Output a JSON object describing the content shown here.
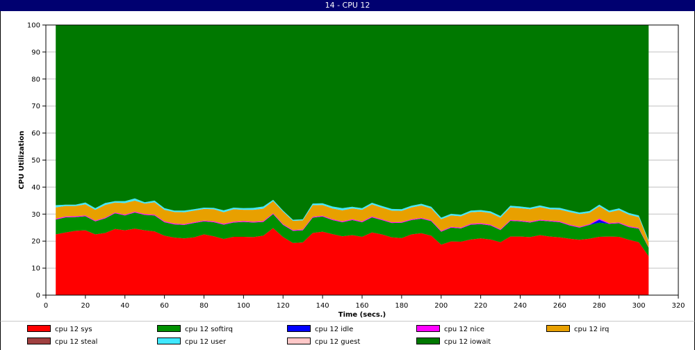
{
  "window": {
    "title": "14 - CPU 12"
  },
  "chart_data": {
    "type": "area",
    "stacked": true,
    "xlabel": "Time (secs.)",
    "ylabel": "CPU Utilization",
    "xlim": [
      0,
      320
    ],
    "ylim": [
      0,
      100
    ],
    "xticks": [
      0,
      20,
      40,
      60,
      80,
      100,
      120,
      140,
      160,
      180,
      200,
      220,
      240,
      260,
      280,
      300,
      320
    ],
    "yticks": [
      0,
      10,
      20,
      30,
      40,
      50,
      60,
      70,
      80,
      90,
      100
    ],
    "grid": true,
    "legend_position": "bottom",
    "x": [
      5,
      10,
      15,
      20,
      25,
      30,
      35,
      40,
      45,
      50,
      55,
      60,
      65,
      70,
      75,
      80,
      85,
      90,
      95,
      100,
      105,
      110,
      115,
      120,
      125,
      130,
      135,
      140,
      145,
      150,
      155,
      160,
      165,
      170,
      175,
      180,
      185,
      190,
      195,
      200,
      205,
      210,
      215,
      220,
      225,
      230,
      235,
      240,
      245,
      250,
      255,
      260,
      265,
      270,
      275,
      280,
      285,
      290,
      295,
      300,
      305
    ],
    "series": [
      {
        "name": "cpu 12 sys",
        "color": "#ff0000",
        "values": [
          22.5,
          23.2,
          23.8,
          24.0,
          22.5,
          23.0,
          24.5,
          24.0,
          24.6,
          24.0,
          23.6,
          22.0,
          21.3,
          21.0,
          21.4,
          22.5,
          21.8,
          20.8,
          21.6,
          21.6,
          21.5,
          22.0,
          24.8,
          21.5,
          19.3,
          19.5,
          23.0,
          23.5,
          22.6,
          21.8,
          22.2,
          21.6,
          23.2,
          22.5,
          21.4,
          21.1,
          22.5,
          22.9,
          22.0,
          18.7,
          19.9,
          19.8,
          20.6,
          21.0,
          20.6,
          19.6,
          21.7,
          21.7,
          21.5,
          22.2,
          21.7,
          21.4,
          20.9,
          20.5,
          20.9,
          21.6,
          21.7,
          21.6,
          20.5,
          19.6,
          14.4
        ]
      },
      {
        "name": "cpu 12 softirq",
        "color": "#009000",
        "values": [
          5.5,
          5.6,
          5.1,
          5.2,
          4.8,
          5.4,
          5.8,
          5.5,
          6.0,
          5.7,
          5.9,
          5.0,
          4.9,
          5.0,
          5.3,
          4.8,
          5.2,
          5.3,
          5.3,
          5.5,
          5.4,
          5.1,
          5.2,
          4.5,
          4.5,
          4.5,
          5.7,
          5.6,
          5.2,
          5.2,
          5.6,
          5.4,
          5.6,
          5.3,
          5.3,
          5.7,
          5.3,
          5.4,
          5.4,
          4.8,
          5.1,
          4.9,
          5.5,
          5.3,
          5.2,
          4.5,
          5.8,
          5.6,
          5.4,
          5.4,
          5.6,
          5.6,
          4.9,
          4.5,
          5.1,
          5.2,
          4.7,
          5.0,
          4.7,
          5.0,
          3.1
        ]
      },
      {
        "name": "cpu 12 idle",
        "color": "#0000ff",
        "values": [
          0,
          0,
          0,
          0,
          0,
          0,
          0,
          0,
          0,
          0,
          0,
          0,
          0,
          0,
          0,
          0,
          0,
          0,
          0,
          0,
          0,
          0,
          0,
          0,
          0,
          0,
          0,
          0,
          0,
          0,
          0,
          0,
          0,
          0,
          0,
          0,
          0,
          0,
          0,
          0,
          0,
          0,
          0,
          0,
          0,
          0,
          0,
          0,
          0,
          0,
          0,
          0,
          0,
          0,
          0,
          1.1,
          0,
          0,
          0,
          0,
          0
        ]
      },
      {
        "name": "cpu 12 nice",
        "color": "#ff00ff",
        "values": [
          0.3,
          0.3,
          0.3,
          0.3,
          0.3,
          0.3,
          0.3,
          0.3,
          0.3,
          0.3,
          0.3,
          0.3,
          0.3,
          0.3,
          0.3,
          0.3,
          0.3,
          0.3,
          0.3,
          0.3,
          0.3,
          0.3,
          0.3,
          0.3,
          0.3,
          0.3,
          0.3,
          0.3,
          0.3,
          0.3,
          0.3,
          0.3,
          0.3,
          0.3,
          0.3,
          0.3,
          0.3,
          0.3,
          0.3,
          0.3,
          0.3,
          0.3,
          0.3,
          0.3,
          0.3,
          0.3,
          0.3,
          0.3,
          0.3,
          0.3,
          0.3,
          0.3,
          0.3,
          0.3,
          0.3,
          0.4,
          0.3,
          0.3,
          0.3,
          0.3,
          0.2
        ]
      },
      {
        "name": "cpu 12 irq",
        "color": "#e8a000",
        "values": [
          4.2,
          3.9,
          3.8,
          4.1,
          4.0,
          4.7,
          3.7,
          4.3,
          4.1,
          3.9,
          4.6,
          4.3,
          4.3,
          4.4,
          4.3,
          4.3,
          4.5,
          4.3,
          4.6,
          4.2,
          4.4,
          4.6,
          4.5,
          4.6,
          3.4,
          3.4,
          4.3,
          4.0,
          4.0,
          4.1,
          4.0,
          4.3,
          4.5,
          4.3,
          4.3,
          4.1,
          4.4,
          4.6,
          4.4,
          4.3,
          4.2,
          4.2,
          4.3,
          4.3,
          4.3,
          4.3,
          4.7,
          4.6,
          4.6,
          4.7,
          4.2,
          4.4,
          4.7,
          4.7,
          4.2,
          4.6,
          4.0,
          4.6,
          4.3,
          4.0,
          2.1
        ]
      },
      {
        "name": "cpu 12 steal",
        "color": "#a04040",
        "values": [
          0,
          0,
          0,
          0,
          0,
          0,
          0,
          0,
          0,
          0,
          0,
          0,
          0,
          0,
          0,
          0,
          0,
          0,
          0,
          0,
          0,
          0,
          0,
          0,
          0,
          0,
          0,
          0,
          0,
          0,
          0,
          0,
          0,
          0,
          0,
          0,
          0,
          0,
          0,
          0,
          0,
          0,
          0,
          0,
          0,
          0,
          0,
          0,
          0,
          0,
          0,
          0,
          0,
          0,
          0,
          0,
          0,
          0,
          0,
          0,
          0
        ]
      },
      {
        "name": "cpu 12 user",
        "color": "#40e8ff",
        "values": [
          0.8,
          0.5,
          0.5,
          0.7,
          0.6,
          0.7,
          0.5,
          0.7,
          0.8,
          0.5,
          0.6,
          0.6,
          0.5,
          0.6,
          0.5,
          0.5,
          0.5,
          0.7,
          0.6,
          0.6,
          0.7,
          0.8,
          0.5,
          0.4,
          0.4,
          0.4,
          0.6,
          0.6,
          0.7,
          0.8,
          0.6,
          0.6,
          0.6,
          0.6,
          0.6,
          0.6,
          0.6,
          0.6,
          0.6,
          0.6,
          0.6,
          0.6,
          0.6,
          0.6,
          0.6,
          0.6,
          0.6,
          0.6,
          0.6,
          0.6,
          0.6,
          0.6,
          0.6,
          0.6,
          0.6,
          0.6,
          0.6,
          0.6,
          0.6,
          0.6,
          0.5
        ]
      },
      {
        "name": "cpu 12 guest",
        "color": "#ffc8c8",
        "values": [
          0,
          0,
          0,
          0,
          0,
          0,
          0,
          0,
          0,
          0,
          0,
          0,
          0,
          0,
          0,
          0,
          0,
          0,
          0,
          0,
          0,
          0,
          0,
          0,
          0,
          0,
          0,
          0,
          0,
          0,
          0,
          0,
          0,
          0,
          0,
          0,
          0,
          0,
          0,
          0,
          0,
          0,
          0,
          0,
          0,
          0,
          0,
          0,
          0,
          0,
          0,
          0,
          0,
          0,
          0,
          0,
          0,
          0,
          0,
          0,
          0
        ]
      },
      {
        "name": "cpu 12 iowait",
        "color": "#007800",
        "values": [
          66.7,
          66.5,
          66.5,
          65.7,
          67.8,
          65.9,
          65.2,
          65.2,
          64.2,
          65.6,
          65.0,
          67.8,
          68.7,
          68.7,
          68.2,
          67.6,
          67.7,
          68.6,
          67.6,
          67.8,
          67.7,
          67.2,
          64.7,
          68.7,
          72.1,
          71.9,
          66.1,
          66.0,
          67.2,
          67.8,
          67.3,
          67.8,
          65.8,
          67.0,
          68.1,
          68.2,
          66.9,
          66.2,
          67.3,
          71.3,
          69.9,
          70.2,
          68.7,
          68.5,
          69.0,
          70.7,
          66.9,
          67.2,
          67.6,
          66.8,
          67.6,
          67.7,
          68.6,
          69.4,
          68.9,
          66.5,
          68.7,
          67.9,
          69.6,
          70.5,
          79.7
        ]
      }
    ]
  }
}
